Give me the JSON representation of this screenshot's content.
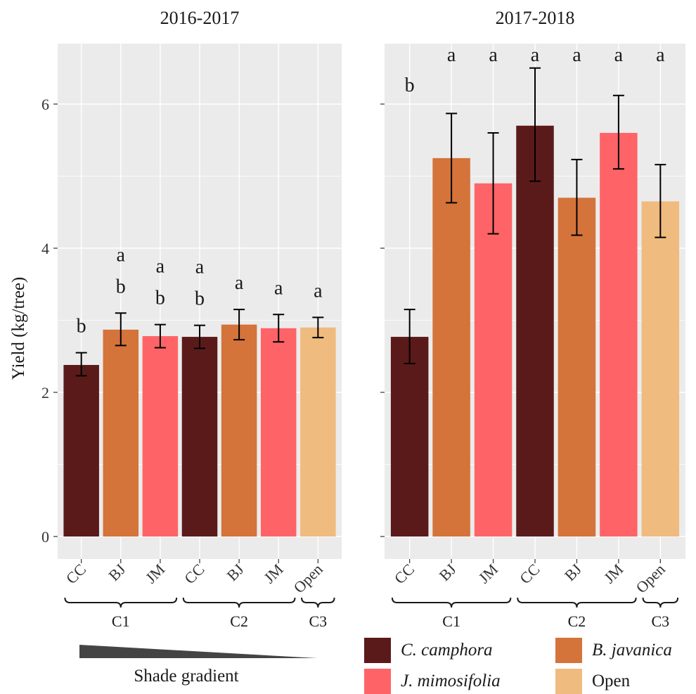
{
  "y_axis_label": "Yield (kg/tree)",
  "shade_gradient_label": "Shade gradient",
  "colors": {
    "camphora": "#5b1a1a",
    "javanica": "#d4733a",
    "mimosifolia": "#fe6467",
    "open": "#f0bb7f",
    "panel_bg": "#ebebeb",
    "grid": "#ffffff",
    "error_bar": "#000000",
    "shade_wedge": "#444444"
  },
  "legend": [
    {
      "label": "C. camphora",
      "color": "#5b1a1a",
      "italic": true
    },
    {
      "label": "B. javanica",
      "color": "#d4733a",
      "italic": true
    },
    {
      "label": "J. mimosifolia",
      "color": "#fe6467",
      "italic": true
    },
    {
      "label": "Open",
      "color": "#f0bb7f",
      "italic": false
    }
  ],
  "chart_data": [
    {
      "type": "bar",
      "title": "2016-2017",
      "ylabel": "Yield (kg/tree)",
      "ylim": [
        0,
        6.8
      ],
      "yticks": [
        "0",
        "2",
        "4",
        "6"
      ],
      "ytick_values": [
        0,
        2,
        4,
        6
      ],
      "categories": [
        "CC",
        "BJ",
        "JM",
        "CC",
        "BJ",
        "JM",
        "Open"
      ],
      "groups": [
        {
          "label": "C1",
          "count": 3
        },
        {
          "label": "C2",
          "count": 3
        },
        {
          "label": "C3",
          "count": 1
        }
      ],
      "values": [
        2.38,
        2.87,
        2.78,
        2.77,
        2.94,
        2.89,
        2.9
      ],
      "error_low": [
        2.23,
        2.65,
        2.62,
        2.61,
        2.73,
        2.7,
        2.76
      ],
      "error_high": [
        2.55,
        3.1,
        2.94,
        2.93,
        3.15,
        3.08,
        3.04
      ],
      "bar_colors": [
        "#5b1a1a",
        "#d4733a",
        "#fe6467",
        "#5b1a1a",
        "#d4733a",
        "#fe6467",
        "#f0bb7f"
      ],
      "letters": [
        [
          "b"
        ],
        [
          "a",
          "b"
        ],
        [
          "a",
          "b"
        ],
        [
          "a",
          "b"
        ],
        [
          "a"
        ],
        [
          "a"
        ],
        [
          "a"
        ]
      ],
      "grid": true
    },
    {
      "type": "bar",
      "title": "2017-2018",
      "ylim": [
        0,
        6.8
      ],
      "categories": [
        "CC",
        "BJ",
        "JM",
        "CC",
        "BJ",
        "JM",
        "Open"
      ],
      "groups": [
        {
          "label": "C1",
          "count": 3
        },
        {
          "label": "C2",
          "count": 3
        },
        {
          "label": "C3",
          "count": 1
        }
      ],
      "values": [
        2.77,
        5.25,
        4.9,
        5.7,
        4.7,
        5.6,
        4.65
      ],
      "error_low": [
        2.4,
        4.63,
        4.2,
        4.93,
        4.18,
        5.1,
        4.15
      ],
      "error_high": [
        3.15,
        5.87,
        5.6,
        6.5,
        5.23,
        6.12,
        5.16
      ],
      "bar_colors": [
        "#5b1a1a",
        "#d4733a",
        "#fe6467",
        "#5b1a1a",
        "#d4733a",
        "#fe6467",
        "#f0bb7f"
      ],
      "letters": [
        [
          "b"
        ],
        [
          "a"
        ],
        [
          "a"
        ],
        [
          "a"
        ],
        [
          "a"
        ],
        [
          "a"
        ],
        [
          "a"
        ]
      ],
      "grid": true
    }
  ]
}
